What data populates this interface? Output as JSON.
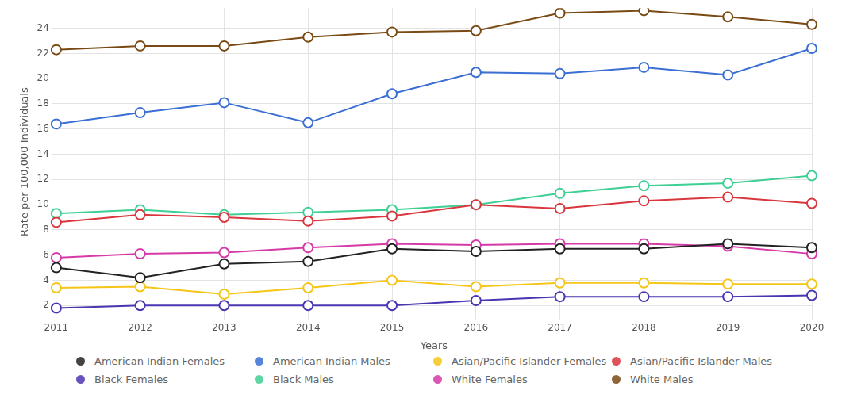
{
  "chart_data": {
    "type": "line",
    "x_label": "Years",
    "y_label": "Rate per 100,000 Individuals",
    "categories": [
      "2011",
      "2012",
      "2013",
      "2014",
      "2015",
      "2016",
      "2017",
      "2018",
      "2019",
      "2020"
    ],
    "series": [
      {
        "name": "American Indian Females",
        "color": "#222222",
        "values": [
          5.0,
          4.2,
          5.3,
          5.5,
          6.5,
          6.3,
          6.5,
          6.5,
          6.9,
          6.6
        ]
      },
      {
        "name": "American Indian Males",
        "color": "#3b6fd4",
        "values": [
          16.4,
          17.3,
          18.1,
          16.5,
          18.8,
          20.5,
          20.4,
          20.9,
          20.3,
          22.4
        ]
      },
      {
        "name": "Asian/Pacific Islander Females",
        "color": "#f5c518",
        "values": [
          3.4,
          3.5,
          2.9,
          3.4,
          4.0,
          3.5,
          3.8,
          3.8,
          3.7,
          3.7
        ]
      },
      {
        "name": "Asian/Pacific Islander Males",
        "color": "#d9363e",
        "values": [
          8.6,
          9.2,
          9.0,
          8.7,
          9.1,
          10.0,
          9.7,
          10.3,
          10.6,
          10.1
        ]
      },
      {
        "name": "Black Females",
        "color": "#4b35b0",
        "values": [
          1.8,
          2.0,
          2.0,
          2.0,
          2.0,
          2.4,
          2.7,
          2.7,
          2.7,
          2.8
        ]
      },
      {
        "name": "Black Males",
        "color": "#3ecf94",
        "values": [
          9.3,
          9.6,
          9.2,
          9.4,
          9.6,
          10.0,
          10.9,
          11.5,
          11.7,
          12.3
        ]
      },
      {
        "name": "White Females",
        "color": "#d63aa8",
        "values": [
          5.8,
          6.1,
          6.2,
          6.6,
          6.9,
          6.8,
          6.9,
          6.9,
          6.7,
          6.1
        ]
      },
      {
        "name": "White Males",
        "color": "#7a4a14",
        "values": [
          22.3,
          22.6,
          22.6,
          23.3,
          23.7,
          23.8,
          25.2,
          25.4,
          24.9,
          24.3
        ]
      }
    ],
    "ylim": [
      1.2,
      25.6
    ],
    "yticks": [
      2,
      4,
      6,
      8,
      10,
      12,
      14,
      16,
      18,
      20,
      22,
      24
    ],
    "grid": true,
    "marker": "circle",
    "legend": "bottom"
  }
}
